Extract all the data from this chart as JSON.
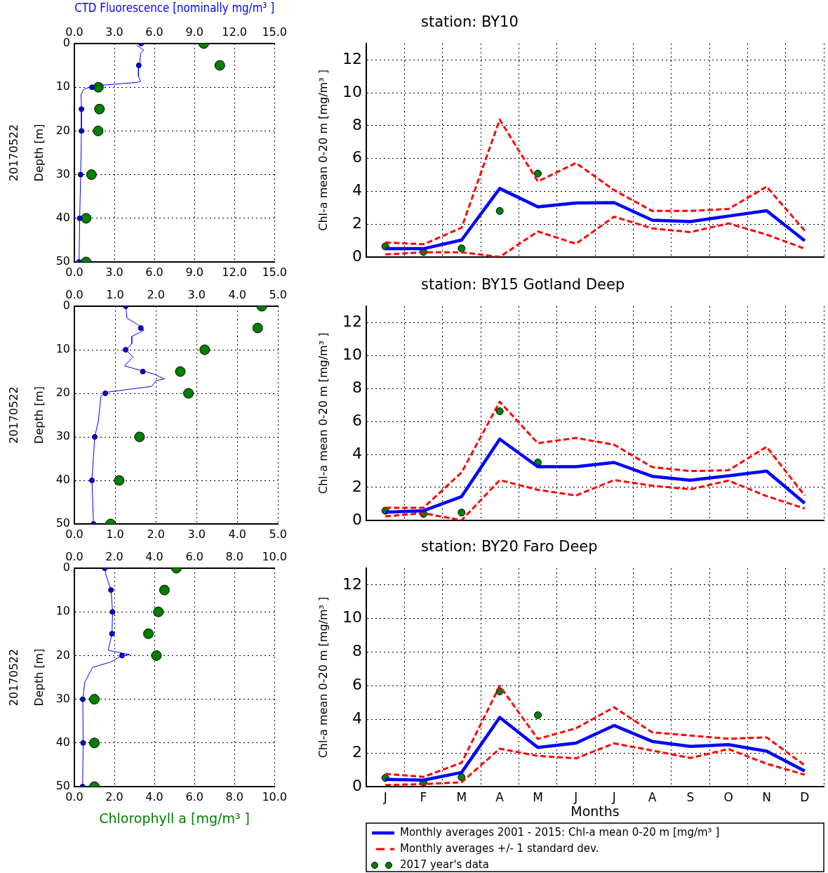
{
  "chart_data": [
    {
      "type": "line",
      "x2label": "CTD Fluorescence [nominally mg/m³ ]",
      "ylabel": "20170522\nDepth [m]",
      "xlim": [
        0,
        15
      ],
      "xticks": [
        {
          "value": 0,
          "label": "0.0"
        },
        {
          "value": 3,
          "label": "3.0"
        },
        {
          "value": 6,
          "label": "6.0"
        },
        {
          "value": 9,
          "label": "9.0"
        },
        {
          "value": 12,
          "label": "12.0"
        },
        {
          "value": 15,
          "label": "15.0"
        }
      ],
      "x2lim": [
        0,
        15
      ],
      "x2ticks": [
        {
          "value": 0,
          "label": "0.0"
        },
        {
          "value": 3,
          "label": "3.0"
        },
        {
          "value": 6,
          "label": "6.0"
        },
        {
          "value": 9,
          "label": "9.0"
        },
        {
          "value": 12,
          "label": "12.0"
        },
        {
          "value": 15,
          "label": "15.0"
        }
      ],
      "ylim": [
        50,
        0
      ],
      "yticks": [
        0,
        10,
        20,
        30,
        40,
        50
      ],
      "grid": true,
      "series": [
        {
          "axis": "x2",
          "color": "#0000ff",
          "marker": "none",
          "x": [
            4.67,
            5.2,
            4.97,
            4.9,
            4.83,
            4.8,
            4.97,
            4.7,
            1.37,
            0.7,
            0.5,
            0.53,
            0.53,
            0.47,
            0.4,
            0.35
          ],
          "values": [
            0.4,
            1.5,
            2.2,
            4.3,
            5,
            7.5,
            8.6,
            8.9,
            9.7,
            10.5,
            11.6,
            15,
            20,
            30,
            40,
            50
          ]
        },
        {
          "type": "scatter",
          "axis": "x2",
          "color": "#0000ff",
          "marker": "circle",
          "x": [
            5.0,
            4.83,
            1.32,
            0.53,
            0.53,
            0.47,
            0.4,
            0.35
          ],
          "values": [
            0,
            5,
            10,
            15,
            20,
            30,
            40,
            50
          ]
        },
        {
          "type": "scatter",
          "color": "#008000",
          "marker": "circle",
          "x": [
            9.7,
            10.9,
            1.8,
            1.88,
            1.78,
            1.28,
            0.88,
            0.88
          ],
          "values": [
            0,
            5,
            10,
            15,
            20,
            30,
            40,
            50
          ]
        }
      ]
    },
    {
      "type": "line",
      "title": "station: BY10",
      "ylabel": "Chl-a mean 0-20 m [mg/m³ ]",
      "categories": [
        null,
        null,
        null,
        null,
        null,
        null,
        null,
        null,
        null,
        null,
        null,
        null
      ],
      "ylim": [
        0,
        13
      ],
      "yticks": [
        0,
        2,
        4,
        6,
        8,
        10,
        12
      ],
      "grid": true,
      "tick_labels": "y",
      "series": [
        {
          "color": "#0000ff",
          "marker": "none",
          "values": [
            0.5,
            0.5,
            1.03,
            4.17,
            3.05,
            3.29,
            3.31,
            2.24,
            2.15,
            2.49,
            2.82,
            0.99
          ]
        },
        {
          "color": "#ff0000",
          "marker": "none",
          "line_style": "dashed",
          "values": [
            0.88,
            0.77,
            1.78,
            8.37,
            4.6,
            5.72,
            4.07,
            2.8,
            2.8,
            2.92,
            4.28,
            1.6
          ]
        },
        {
          "color": "#ff0000",
          "marker": "none",
          "line_style": "dashed",
          "values": [
            0.15,
            0.28,
            0.28,
            0.0,
            1.55,
            0.8,
            2.45,
            1.74,
            1.51,
            2.04,
            1.36,
            0.5
          ]
        },
        {
          "type": "scatter",
          "color": "#008000",
          "marker": "circle",
          "values": [
            0.64,
            0.3,
            0.52,
            2.8,
            5.08,
            null,
            null,
            null,
            null,
            null,
            null,
            null
          ]
        }
      ]
    },
    {
      "type": "line",
      "ylabel": "20170522\nDepth [m]",
      "xlim": [
        0,
        5
      ],
      "xticks": [
        {
          "value": 0,
          "label": "0.0"
        },
        {
          "value": 1,
          "label": "1.0"
        },
        {
          "value": 2,
          "label": "2.0"
        },
        {
          "value": 3,
          "label": "3.0"
        },
        {
          "value": 4,
          "label": "4.0"
        },
        {
          "value": 5,
          "label": "5.0"
        }
      ],
      "x2lim": [
        0,
        5
      ],
      "x2ticks": [
        {
          "value": 0,
          "label": "0.0"
        },
        {
          "value": 1,
          "label": "1.0"
        },
        {
          "value": 2,
          "label": "2.0"
        },
        {
          "value": 3,
          "label": "3.0"
        },
        {
          "value": 4,
          "label": "4.0"
        },
        {
          "value": 5,
          "label": "5.0"
        }
      ],
      "ylim": [
        50,
        0
      ],
      "yticks": [
        0,
        10,
        20,
        30,
        40,
        50
      ],
      "grid": true,
      "series": [
        {
          "axis": "x2",
          "color": "#0000ff",
          "marker": "none",
          "x": [
            1.26,
            1.29,
            1.57,
            1.71,
            1.4,
            1.41,
            1.26,
            1.44,
            1.23,
            1.96,
            2.21,
            2.0,
            1.9,
            0.76,
            0.65,
            0.59,
            0.5,
            0.43,
            0.47
          ],
          "values": [
            0,
            2.7,
            4.3,
            5.5,
            7,
            8.6,
            10,
            11.7,
            13.7,
            15.6,
            16.7,
            17.1,
            18.4,
            19.8,
            20.7,
            26.3,
            30,
            40,
            50
          ]
        },
        {
          "type": "scatter",
          "axis": "x2",
          "color": "#0000ff",
          "marker": "circle",
          "x": [
            1.26,
            1.63,
            1.26,
            1.68,
            0.76,
            0.5,
            0.43,
            0.47
          ],
          "values": [
            0,
            5,
            10,
            15,
            20,
            30,
            40,
            50
          ]
        },
        {
          "type": "scatter",
          "color": "#008000",
          "marker": "circle",
          "x": [
            4.6,
            4.5,
            3.2,
            2.6,
            2.8,
            1.6,
            1.1,
            0.89
          ],
          "values": [
            0,
            5,
            10,
            15,
            20,
            30,
            40,
            50
          ]
        }
      ]
    },
    {
      "type": "line",
      "title": "station: BY15 Gotland Deep",
      "ylabel": "Chl-a mean 0-20 m [mg/m³ ]",
      "categories": [
        null,
        null,
        null,
        null,
        null,
        null,
        null,
        null,
        null,
        null,
        null,
        null
      ],
      "ylim": [
        0,
        13
      ],
      "yticks": [
        0,
        2,
        4,
        6,
        8,
        10,
        12
      ],
      "grid": true,
      "tick_labels": "y",
      "series": [
        {
          "color": "#0000ff",
          "marker": "none",
          "values": [
            0.49,
            0.58,
            1.44,
            4.93,
            3.25,
            3.25,
            3.51,
            2.67,
            2.43,
            2.7,
            2.99,
            1.04
          ]
        },
        {
          "color": "#ff0000",
          "marker": "none",
          "line_style": "dashed",
          "values": [
            0.76,
            0.76,
            2.91,
            7.2,
            4.68,
            5.0,
            4.59,
            3.23,
            2.99,
            3.04,
            4.46,
            1.5
          ]
        },
        {
          "color": "#ff0000",
          "marker": "none",
          "line_style": "dashed",
          "values": [
            0.24,
            0.43,
            0.0,
            2.44,
            1.85,
            1.51,
            2.44,
            2.1,
            1.88,
            2.41,
            1.47,
            0.71
          ]
        },
        {
          "type": "scatter",
          "color": "#008000",
          "marker": "circle",
          "values": [
            0.58,
            0.39,
            0.47,
            6.62,
            3.51,
            null,
            null,
            null,
            null,
            null,
            null,
            null
          ]
        }
      ]
    },
    {
      "type": "line",
      "xlabel": "Chlorophyll a [mg/m³ ]",
      "ylabel": "20170522\nDepth [m]",
      "xlim": [
        0,
        10
      ],
      "xticks": [
        {
          "value": 0,
          "label": "0.0"
        },
        {
          "value": 2,
          "label": "2.0"
        },
        {
          "value": 4,
          "label": "4.0"
        },
        {
          "value": 6,
          "label": "6.0"
        },
        {
          "value": 8,
          "label": "8.0"
        },
        {
          "value": 10,
          "label": "10.0"
        }
      ],
      "x2lim": [
        0,
        10
      ],
      "x2ticks": [
        {
          "value": 0,
          "label": "0.0"
        },
        {
          "value": 2,
          "label": "2.0"
        },
        {
          "value": 4,
          "label": "4.0"
        },
        {
          "value": 6,
          "label": "6.0"
        },
        {
          "value": 8,
          "label": "8.0"
        },
        {
          "value": 10,
          "label": "10.0"
        }
      ],
      "ylim": [
        50,
        0
      ],
      "yticks": [
        0,
        10,
        20,
        30,
        40,
        50
      ],
      "grid": true,
      "series": [
        {
          "axis": "x2",
          "color": "#0000ff",
          "marker": "none",
          "x": [
            1.52,
            1.58,
            1.83,
            1.91,
            1.88,
            1.69,
            2.78,
            2.38,
            1.8,
            0.91,
            0.52,
            0.42,
            0.44,
            0.41
          ],
          "values": [
            0,
            1.6,
            5,
            10,
            15,
            18.8,
            19.8,
            20,
            21.5,
            22.7,
            26.1,
            30,
            40,
            50
          ]
        },
        {
          "type": "scatter",
          "axis": "x2",
          "color": "#0000ff",
          "marker": "circle",
          "x": [
            1.52,
            1.83,
            1.91,
            1.88,
            2.38,
            0.42,
            0.44,
            0.41
          ],
          "values": [
            0,
            5,
            10,
            15,
            20,
            30,
            40,
            50
          ]
        },
        {
          "type": "scatter",
          "color": "#008000",
          "marker": "circle",
          "x": [
            5.1,
            4.5,
            4.2,
            3.7,
            4.1,
            1.0,
            1.0,
            1.0
          ],
          "values": [
            0,
            5,
            10,
            15,
            20,
            30,
            40,
            50
          ]
        }
      ]
    },
    {
      "type": "line",
      "title": "station: BY20 Faro Deep",
      "xlabel": "Months",
      "ylabel": "Chl-a mean 0-20 m [mg/m³ ]",
      "legend": "bottom",
      "categories": [
        "J",
        "F",
        "M",
        "A",
        "M",
        "J",
        "J",
        "A",
        "S",
        "O",
        "N",
        "D"
      ],
      "ylim": [
        0,
        13
      ],
      "yticks": [
        0,
        2,
        4,
        6,
        8,
        10,
        12
      ],
      "grid": true,
      "series": [
        {
          "name": "Monthly averages 2001 - 2015: Chl-a mean 0-20 m [mg/m³ ]",
          "color": "#0000ff",
          "marker": "none",
          "values": [
            0.43,
            0.39,
            0.84,
            4.12,
            2.33,
            2.59,
            3.64,
            2.69,
            2.39,
            2.5,
            2.11,
            0.93
          ]
        },
        {
          "name": "Monthly averages +/- 1 standard dev.",
          "color": "#ff0000",
          "marker": "none",
          "line_style": "dashed",
          "values": [
            0.76,
            0.58,
            1.42,
            5.99,
            2.84,
            3.47,
            4.72,
            3.23,
            3.04,
            2.85,
            2.93,
            1.27
          ]
        },
        {
          "color": "#ff0000",
          "marker": "none",
          "line_style": "dashed",
          "values": [
            0.09,
            0.15,
            0.26,
            2.26,
            1.83,
            1.68,
            2.57,
            2.15,
            1.7,
            2.24,
            1.36,
            0.71
          ]
        },
        {
          "name": "2017 year's data",
          "type": "scatter",
          "color": "#008000",
          "marker": "circle",
          "values": [
            0.52,
            0.24,
            0.56,
            5.67,
            4.25,
            null,
            null,
            null,
            null,
            null,
            null,
            null
          ]
        }
      ]
    }
  ]
}
